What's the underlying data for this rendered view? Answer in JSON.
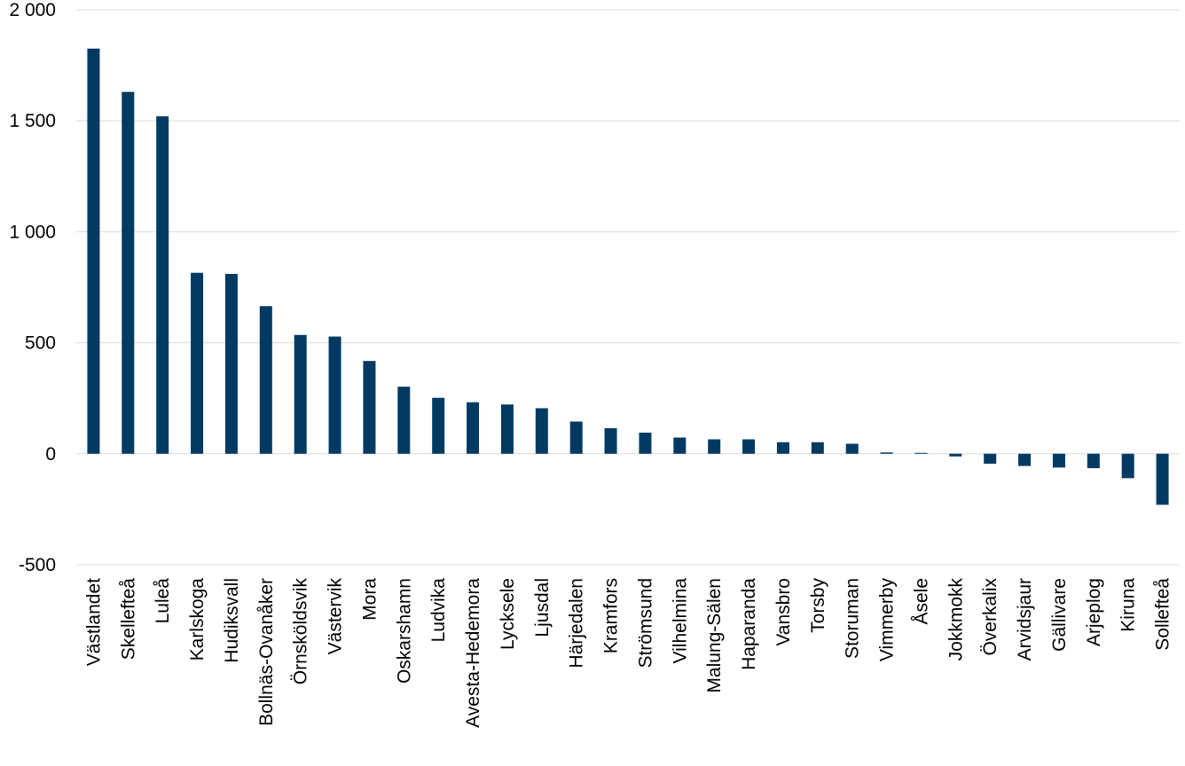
{
  "chart_data": {
    "type": "bar",
    "categories": [
      "Västlandet",
      "Skellefteå",
      "Luleå",
      "Karlskoga",
      "Hudiksvall",
      "Bollnäs-Ovanåker",
      "Örnsköldsvik",
      "Västervik",
      "Mora",
      "Oskarshamn",
      "Ludvika",
      "Avesta-Hedemora",
      "Lycksele",
      "Ljusdal",
      "Härjedalen",
      "Kramfors",
      "Strömsund",
      "Vilhelmina",
      "Malung-Sälen",
      "Haparanda",
      "Vansbro",
      "Torsby",
      "Storuman",
      "Vimmerby",
      "Åsele",
      "Jokkmokk",
      "Överkalix",
      "Arvidsjaur",
      "Gällivare",
      "Arjeplog",
      "Kiruna",
      "Sollefteå"
    ],
    "values": [
      1825,
      1630,
      1520,
      815,
      810,
      665,
      535,
      528,
      418,
      302,
      252,
      232,
      222,
      205,
      145,
      115,
      95,
      73,
      65,
      65,
      52,
      52,
      45,
      6,
      4,
      -12,
      -45,
      -55,
      -62,
      -65,
      -110,
      -230
    ],
    "yticks": [
      {
        "value": -500,
        "label": "-500"
      },
      {
        "value": 0,
        "label": "0"
      },
      {
        "value": 500,
        "label": "500"
      },
      {
        "value": 1000,
        "label": "1 000"
      },
      {
        "value": 1500,
        "label": "1 500"
      },
      {
        "value": 2000,
        "label": "2 000"
      }
    ],
    "ylim": [
      -500,
      2000
    ],
    "grid": true,
    "colors": {
      "bar": "#003a63",
      "grid": "#d9d9d9"
    }
  }
}
